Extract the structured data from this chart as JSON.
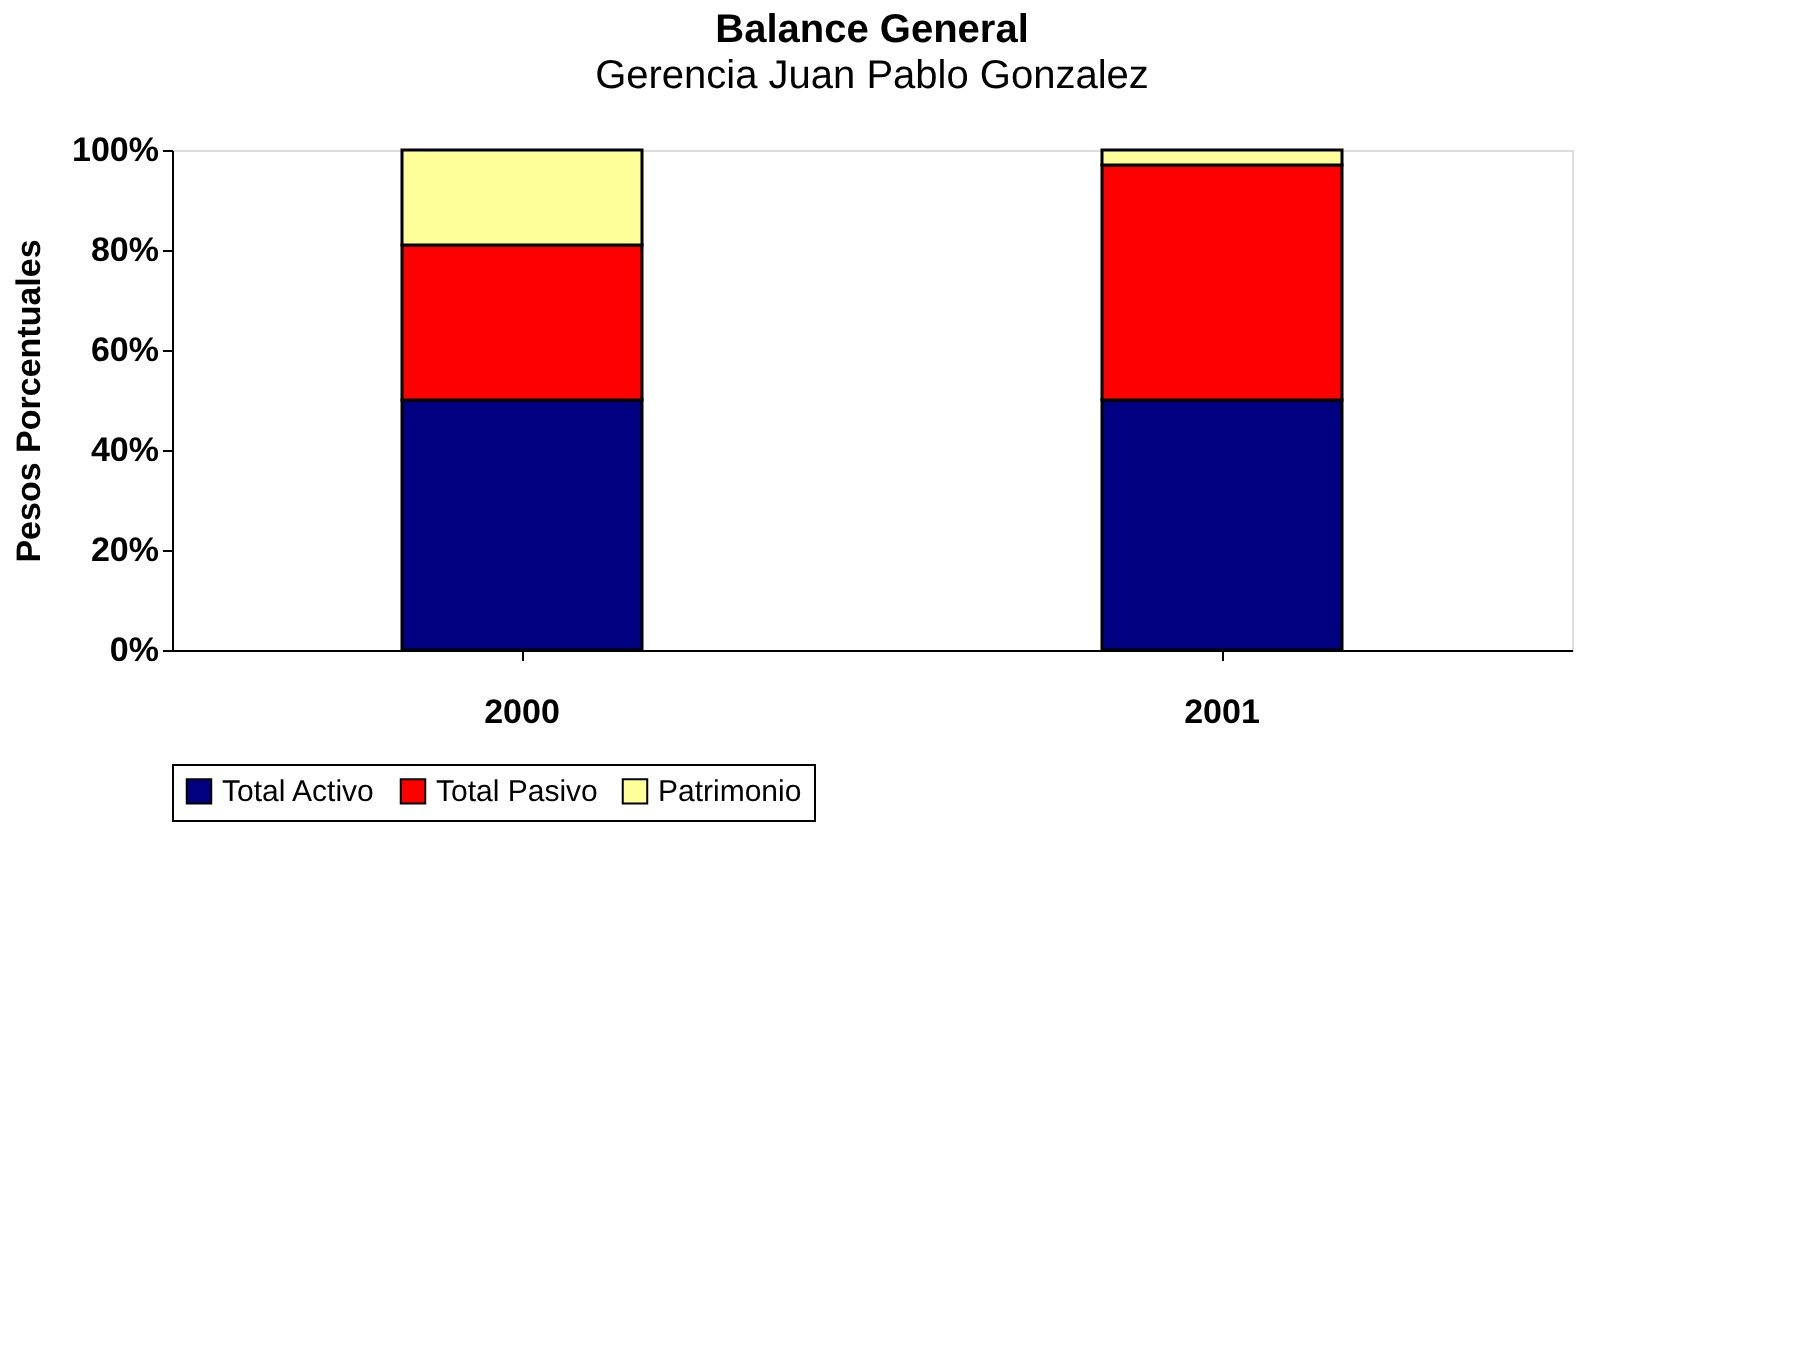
{
  "chart_data": {
    "type": "bar",
    "title": "Balance General",
    "subtitle": "Gerencia Juan Pablo Gonzalez",
    "ylabel": "Pesos Porcentuales",
    "stacked": true,
    "categories": [
      "2000",
      "2001"
    ],
    "series": [
      {
        "name": "Total Activo",
        "color": "#000080",
        "values": [
          50,
          50
        ]
      },
      {
        "name": "Total Pasivo",
        "color": "#ff0000",
        "values": [
          31,
          47
        ]
      },
      {
        "name": "Patrimonio",
        "color": "#ffff99",
        "values": [
          19,
          3
        ]
      }
    ],
    "ylim": [
      0,
      100
    ],
    "yticks": [
      {
        "value": 0,
        "label": "0%"
      },
      {
        "value": 20,
        "label": "20%"
      },
      {
        "value": 40,
        "label": "40%"
      },
      {
        "value": 60,
        "label": "60%"
      },
      {
        "value": 80,
        "label": "80%"
      },
      {
        "value": 100,
        "label": "100%"
      }
    ],
    "grid": false,
    "legend": "bottom"
  }
}
